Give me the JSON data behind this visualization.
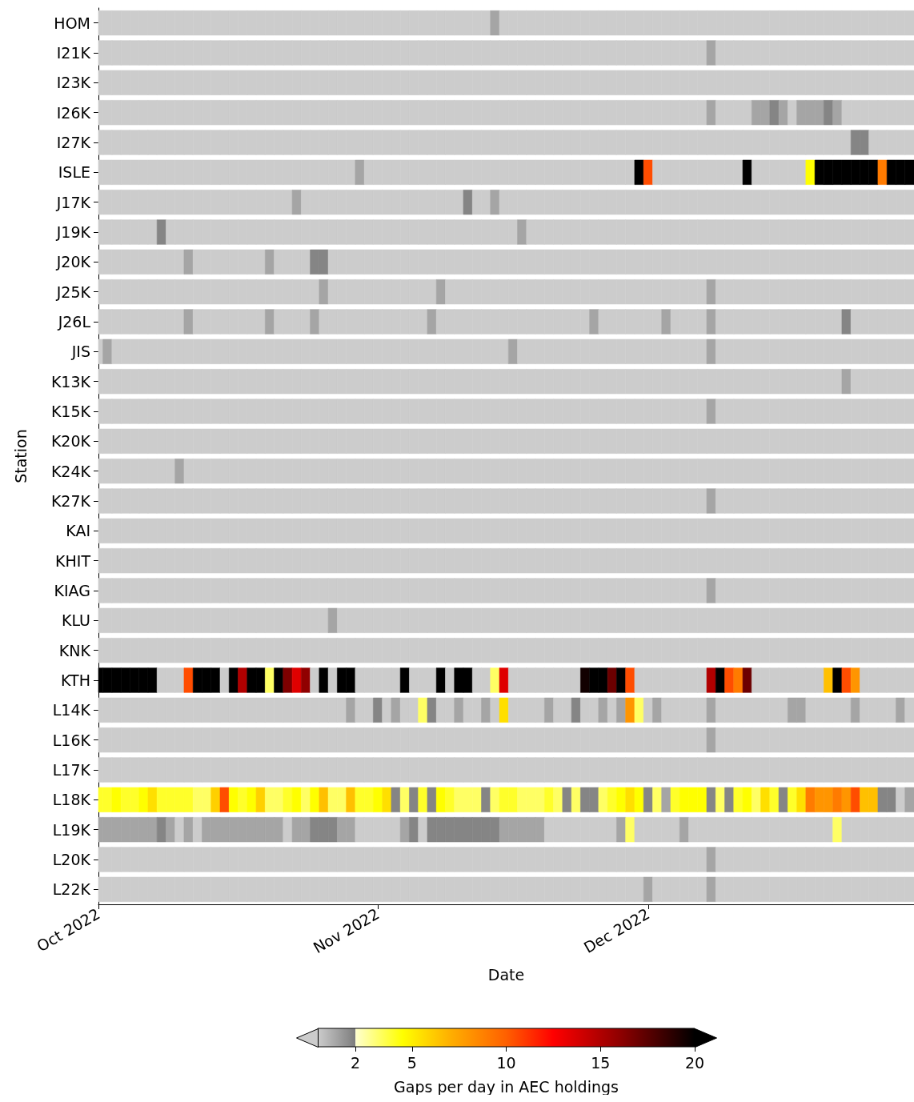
{
  "chart_data": {
    "type": "heatmap",
    "xlabel": "Date",
    "ylabel": "Station",
    "clabel": "Gaps per day in AEC holdings",
    "clim": [
      0,
      20
    ],
    "cticks": [
      2,
      5,
      10,
      15,
      20
    ],
    "xlim": [
      "2022-10-01",
      "2022-12-30T12:00"
    ],
    "xticks": [
      {
        "value": "2022-10-01",
        "label": "Oct 2022"
      },
      {
        "value": "2022-11-01",
        "label": "Nov 2022"
      },
      {
        "value": "2022-12-01",
        "label": "Dec 2022"
      }
    ],
    "x": [
      "2022-10-01",
      "2022-10-02",
      "2022-10-03",
      "2022-10-04",
      "2022-10-05",
      "2022-10-06",
      "2022-10-07",
      "2022-10-08",
      "2022-10-09",
      "2022-10-10",
      "2022-10-11",
      "2022-10-12",
      "2022-10-13",
      "2022-10-14",
      "2022-10-15",
      "2022-10-16",
      "2022-10-17",
      "2022-10-18",
      "2022-10-19",
      "2022-10-20",
      "2022-10-21",
      "2022-10-22",
      "2022-10-23",
      "2022-10-24",
      "2022-10-25",
      "2022-10-26",
      "2022-10-27",
      "2022-10-28",
      "2022-10-29",
      "2022-10-30",
      "2022-10-31",
      "2022-11-01",
      "2022-11-02",
      "2022-11-03",
      "2022-11-04",
      "2022-11-05",
      "2022-11-06",
      "2022-11-07",
      "2022-11-08",
      "2022-11-09",
      "2022-11-10",
      "2022-11-11",
      "2022-11-12",
      "2022-11-13",
      "2022-11-14",
      "2022-11-15",
      "2022-11-16",
      "2022-11-17",
      "2022-11-18",
      "2022-11-19",
      "2022-11-20",
      "2022-11-21",
      "2022-11-22",
      "2022-11-23",
      "2022-11-24",
      "2022-11-25",
      "2022-11-26",
      "2022-11-27",
      "2022-11-28",
      "2022-11-29",
      "2022-11-30",
      "2022-12-01",
      "2022-12-02",
      "2022-12-03",
      "2022-12-04",
      "2022-12-05",
      "2022-12-06",
      "2022-12-07",
      "2022-12-08",
      "2022-12-09",
      "2022-12-10",
      "2022-12-11",
      "2022-12-12",
      "2022-12-13",
      "2022-12-14",
      "2022-12-15",
      "2022-12-16",
      "2022-12-17",
      "2022-12-18",
      "2022-12-19",
      "2022-12-20",
      "2022-12-21",
      "2022-12-22",
      "2022-12-23",
      "2022-12-24",
      "2022-12-25",
      "2022-12-26",
      "2022-12-27",
      "2022-12-28",
      "2022-12-29",
      "2022-12-30"
    ],
    "y_categories": [
      "HOM",
      "I21K",
      "I23K",
      "I26K",
      "I27K",
      "ISLE",
      "J17K",
      "J19K",
      "J20K",
      "J25K",
      "J26L",
      "JIS",
      "K13K",
      "K15K",
      "K20K",
      "K24K",
      "K27K",
      "KAI",
      "KHIT",
      "KIAG",
      "KLU",
      "KNK",
      "KTH",
      "L14K",
      "L16K",
      "L17K",
      "L18K",
      "L19K",
      "L20K",
      "L22K"
    ],
    "cells": [
      [
        0,
        0,
        0,
        0,
        0,
        0,
        0,
        0,
        0,
        0,
        0,
        0,
        0,
        0,
        0,
        0,
        0,
        0,
        0,
        0,
        0,
        0,
        0,
        0,
        0,
        0,
        0,
        0,
        0,
        0,
        0,
        0,
        0,
        0,
        0,
        0,
        0,
        0,
        0,
        0,
        0,
        0,
        0,
        0,
        1,
        0,
        0,
        0,
        0,
        0,
        0,
        0,
        0,
        0,
        0,
        0,
        0,
        0,
        0,
        0,
        0,
        0,
        0,
        0,
        0,
        0,
        0,
        0,
        0,
        0,
        0,
        0,
        0,
        0,
        0,
        0,
        0,
        0,
        0,
        0,
        0,
        0,
        0,
        0,
        0,
        0,
        0,
        0,
        0,
        0,
        0
      ],
      [
        0,
        0,
        0,
        0,
        0,
        0,
        0,
        0,
        0,
        0,
        0,
        0,
        0,
        0,
        0,
        0,
        0,
        0,
        0,
        0,
        0,
        0,
        0,
        0,
        0,
        0,
        0,
        0,
        0,
        0,
        0,
        0,
        0,
        0,
        0,
        0,
        0,
        0,
        0,
        0,
        0,
        0,
        0,
        0,
        0,
        0,
        0,
        0,
        0,
        0,
        0,
        0,
        0,
        0,
        0,
        0,
        0,
        0,
        0,
        0,
        0,
        0,
        0,
        0,
        0,
        0,
        0,
        0,
        1,
        0,
        0,
        0,
        0,
        0,
        0,
        0,
        0,
        0,
        0,
        0,
        0,
        0,
        0,
        0,
        0,
        0,
        0,
        0,
        0,
        0,
        0
      ],
      [
        0,
        0,
        0,
        0,
        0,
        0,
        0,
        0,
        0,
        0,
        0,
        0,
        0,
        0,
        0,
        0,
        0,
        0,
        0,
        0,
        0,
        0,
        0,
        0,
        0,
        0,
        0,
        0,
        0,
        0,
        0,
        0,
        0,
        0,
        0,
        0,
        0,
        0,
        0,
        0,
        0,
        0,
        0,
        0,
        0,
        0,
        0,
        0,
        0,
        0,
        0,
        0,
        0,
        0,
        0,
        0,
        0,
        0,
        0,
        0,
        0,
        0,
        0,
        0,
        0,
        0,
        0,
        0,
        0,
        0,
        0,
        0,
        0,
        0,
        0,
        0,
        0,
        0,
        0,
        0,
        0,
        0,
        0,
        0,
        0,
        0,
        0,
        0,
        0,
        0,
        0
      ],
      [
        0,
        0,
        0,
        0,
        0,
        0,
        0,
        0,
        0,
        0,
        0,
        0,
        0,
        0,
        0,
        0,
        0,
        0,
        0,
        0,
        0,
        0,
        0,
        0,
        0,
        0,
        0,
        0,
        0,
        0,
        0,
        0,
        0,
        0,
        0,
        0,
        0,
        0,
        0,
        0,
        0,
        0,
        0,
        0,
        0,
        0,
        0,
        0,
        0,
        0,
        0,
        0,
        0,
        0,
        0,
        0,
        0,
        0,
        0,
        0,
        0,
        0,
        0,
        0,
        0,
        0,
        0,
        0,
        1,
        0,
        0,
        0,
        0,
        1,
        1,
        1.8,
        1,
        0,
        1,
        1,
        1,
        1.8,
        1,
        0,
        0,
        0,
        0,
        0,
        0,
        0,
        0
      ],
      [
        0,
        0,
        0,
        0,
        0,
        0,
        0,
        0,
        0,
        0,
        0,
        0,
        0,
        0,
        0,
        0,
        0,
        0,
        0,
        0,
        0,
        0,
        0,
        0,
        0,
        0,
        0,
        0,
        0,
        0,
        0,
        0,
        0,
        0,
        0,
        0,
        0,
        0,
        0,
        0,
        0,
        0,
        0,
        0,
        0,
        0,
        0,
        0,
        0,
        0,
        0,
        0,
        0,
        0,
        0,
        0,
        0,
        0,
        0,
        0,
        0,
        0,
        0,
        0,
        0,
        0,
        0,
        0,
        0,
        0,
        0,
        0,
        0,
        0,
        0,
        0,
        0,
        0,
        0,
        0,
        0,
        0,
        0,
        0,
        1.8,
        1.8,
        0,
        0,
        0,
        0,
        0
      ],
      [
        0,
        0,
        0,
        0,
        0,
        0,
        0,
        0,
        0,
        0,
        0,
        0,
        0,
        0,
        0,
        0,
        0,
        0,
        0,
        0,
        0,
        0,
        0,
        0,
        0,
        0,
        0,
        0,
        0,
        1,
        0,
        0,
        0,
        0,
        0,
        0,
        0,
        0,
        0,
        0,
        0,
        0,
        0,
        0,
        0,
        0,
        0,
        0,
        0,
        0,
        0,
        0,
        0,
        0,
        0,
        0,
        0,
        0,
        0,
        0,
        20,
        10.5,
        0,
        0,
        0,
        0,
        0,
        0,
        0,
        0,
        0,
        0,
        20,
        0,
        0,
        0,
        0,
        0,
        0,
        4.5,
        20,
        20,
        20,
        20,
        20,
        20,
        20,
        9,
        20,
        20,
        20
      ],
      [
        0,
        0,
        0,
        0,
        0,
        0,
        0,
        0,
        0,
        0,
        0,
        0,
        0,
        0,
        0,
        0,
        0,
        0,
        0,
        0,
        0,
        0,
        1,
        0,
        0,
        0,
        0,
        0,
        0,
        0,
        0,
        0,
        0,
        0,
        0,
        0,
        0,
        0,
        0,
        0,
        0,
        1.8,
        0,
        0,
        1,
        0,
        0,
        0,
        0,
        0,
        0,
        0,
        0,
        0,
        0,
        0,
        0,
        0,
        0,
        0,
        0,
        0,
        0,
        0,
        0,
        0,
        0,
        0,
        0,
        0,
        0,
        0,
        0,
        0,
        0,
        0,
        0,
        0,
        0,
        0,
        0,
        0,
        0,
        0,
        0,
        0,
        0,
        0,
        0,
        0,
        0
      ],
      [
        0,
        0,
        0,
        0,
        0,
        0,
        0,
        1.8,
        0,
        0,
        0,
        0,
        0,
        0,
        0,
        0,
        0,
        0,
        0,
        0,
        0,
        0,
        0,
        0,
        0,
        0,
        0,
        0,
        0,
        0,
        0,
        0,
        0,
        0,
        0,
        0,
        0,
        0,
        0,
        0,
        0,
        0,
        0,
        0,
        0,
        0,
        0,
        1,
        0,
        0,
        0,
        0,
        0,
        0,
        0,
        0,
        0,
        0,
        0,
        0,
        0,
        0,
        0,
        0,
        0,
        0,
        0,
        0,
        0,
        0,
        0,
        0,
        0,
        0,
        0,
        0,
        0,
        0,
        0,
        0,
        0,
        0,
        0,
        0,
        0,
        0,
        0,
        0,
        0,
        0,
        0
      ],
      [
        0,
        0,
        0,
        0,
        0,
        0,
        0,
        0,
        0,
        0,
        1,
        0,
        0,
        0,
        0,
        0,
        0,
        0,
        0,
        1,
        0,
        0,
        0,
        0,
        1.8,
        1.8,
        0,
        0,
        0,
        0,
        0,
        0,
        0,
        0,
        0,
        0,
        0,
        0,
        0,
        0,
        0,
        0,
        0,
        0,
        0,
        0,
        0,
        0,
        0,
        0,
        0,
        0,
        0,
        0,
        0,
        0,
        0,
        0,
        0,
        0,
        0,
        0,
        0,
        0,
        0,
        0,
        0,
        0,
        0,
        0,
        0,
        0,
        0,
        0,
        0,
        0,
        0,
        0,
        0,
        0,
        0,
        0,
        0,
        0,
        0,
        0,
        0,
        0,
        0,
        0,
        0
      ],
      [
        0,
        0,
        0,
        0,
        0,
        0,
        0,
        0,
        0,
        0,
        0,
        0,
        0,
        0,
        0,
        0,
        0,
        0,
        0,
        0,
        0,
        0,
        0,
        0,
        0,
        1,
        0,
        0,
        0,
        0,
        0,
        0,
        0,
        0,
        0,
        0,
        0,
        0,
        1,
        0,
        0,
        0,
        0,
        0,
        0,
        0,
        0,
        0,
        0,
        0,
        0,
        0,
        0,
        0,
        0,
        0,
        0,
        0,
        0,
        0,
        0,
        0,
        0,
        0,
        0,
        0,
        0,
        0,
        1,
        0,
        0,
        0,
        0,
        0,
        0,
        0,
        0,
        0,
        0,
        0,
        0,
        0,
        0,
        0,
        0,
        0,
        0,
        0,
        0,
        0,
        0
      ],
      [
        0,
        0,
        0,
        0,
        0,
        0,
        0,
        0,
        0,
        0,
        1,
        0,
        0,
        0,
        0,
        0,
        0,
        0,
        0,
        1,
        0,
        0,
        0,
        0,
        1,
        0,
        0,
        0,
        0,
        0,
        0,
        0,
        0,
        0,
        0,
        0,
        0,
        1,
        0,
        0,
        0,
        0,
        0,
        0,
        0,
        0,
        0,
        0,
        0,
        0,
        0,
        0,
        0,
        0,
        0,
        1,
        0,
        0,
        0,
        0,
        0,
        0,
        0,
        1,
        0,
        0,
        0,
        0,
        1,
        0,
        0,
        0,
        0,
        0,
        0,
        0,
        0,
        0,
        0,
        0,
        0,
        0,
        0,
        1.8,
        0,
        0,
        0,
        0,
        0,
        0,
        0
      ],
      [
        0,
        1,
        0,
        0,
        0,
        0,
        0,
        0,
        0,
        0,
        0,
        0,
        0,
        0,
        0,
        0,
        0,
        0,
        0,
        0,
        0,
        0,
        0,
        0,
        0,
        0,
        0,
        0,
        0,
        0,
        0,
        0,
        0,
        0,
        0,
        0,
        0,
        0,
        0,
        0,
        0,
        0,
        0,
        0,
        0,
        0,
        1,
        0,
        0,
        0,
        0,
        0,
        0,
        0,
        0,
        0,
        0,
        0,
        0,
        0,
        0,
        0,
        0,
        0,
        0,
        0,
        0,
        0,
        1,
        0,
        0,
        0,
        0,
        0,
        0,
        0,
        0,
        0,
        0,
        0,
        0,
        0,
        0,
        0,
        0,
        0,
        0,
        0,
        0,
        0,
        0
      ],
      [
        0,
        0,
        0,
        0,
        0,
        0,
        0,
        0,
        0,
        0,
        0,
        0,
        0,
        0,
        0,
        0,
        0,
        0,
        0,
        0,
        0,
        0,
        0,
        0,
        0,
        0,
        0,
        0,
        0,
        0,
        0,
        0,
        0,
        0,
        0,
        0,
        0,
        0,
        0,
        0,
        0,
        0,
        0,
        0,
        0,
        0,
        0,
        0,
        0,
        0,
        0,
        0,
        0,
        0,
        0,
        0,
        0,
        0,
        0,
        0,
        0,
        0,
        0,
        0,
        0,
        0,
        0,
        0,
        0,
        0,
        0,
        0,
        0,
        0,
        0,
        0,
        0,
        0,
        0,
        0,
        0,
        0,
        0,
        1,
        0,
        0,
        0,
        0,
        0,
        0,
        0
      ],
      [
        0,
        0,
        0,
        0,
        0,
        0,
        0,
        0,
        0,
        0,
        0,
        0,
        0,
        0,
        0,
        0,
        0,
        0,
        0,
        0,
        0,
        0,
        0,
        0,
        0,
        0,
        0,
        0,
        0,
        0,
        0,
        0,
        0,
        0,
        0,
        0,
        0,
        0,
        0,
        0,
        0,
        0,
        0,
        0,
        0,
        0,
        0,
        0,
        0,
        0,
        0,
        0,
        0,
        0,
        0,
        0,
        0,
        0,
        0,
        0,
        0,
        0,
        0,
        0,
        0,
        0,
        0,
        0,
        1,
        0,
        0,
        0,
        0,
        0,
        0,
        0,
        0,
        0,
        0,
        0,
        0,
        0,
        0,
        0,
        0,
        0,
        0,
        0,
        0,
        0,
        0
      ],
      [
        0,
        0,
        0,
        0,
        0,
        0,
        0,
        0,
        0,
        0,
        0,
        0,
        0,
        0,
        0,
        0,
        0,
        0,
        0,
        0,
        0,
        0,
        0,
        0,
        0,
        0,
        0,
        0,
        0,
        0,
        0,
        0,
        0,
        0,
        0,
        0,
        0,
        0,
        0,
        0,
        0,
        0,
        0,
        0,
        0,
        0,
        0,
        0,
        0,
        0,
        0,
        0,
        0,
        0,
        0,
        0,
        0,
        0,
        0,
        0,
        0,
        0,
        0,
        0,
        0,
        0,
        0,
        0,
        0,
        0,
        0,
        0,
        0,
        0,
        0,
        0,
        0,
        0,
        0,
        0,
        0,
        0,
        0,
        0,
        0,
        0,
        0,
        0,
        0,
        0,
        0
      ],
      [
        0,
        0,
        0,
        0,
        0,
        0,
        0,
        0,
        0,
        1,
        0,
        0,
        0,
        0,
        0,
        0,
        0,
        0,
        0,
        0,
        0,
        0,
        0,
        0,
        0,
        0,
        0,
        0,
        0,
        0,
        0,
        0,
        0,
        0,
        0,
        0,
        0,
        0,
        0,
        0,
        0,
        0,
        0,
        0,
        0,
        0,
        0,
        0,
        0,
        0,
        0,
        0,
        0,
        0,
        0,
        0,
        0,
        0,
        0,
        0,
        0,
        0,
        0,
        0,
        0,
        0,
        0,
        0,
        0,
        0,
        0,
        0,
        0,
        0,
        0,
        0,
        0,
        0,
        0,
        0,
        0,
        0,
        0,
        0,
        0,
        0,
        0,
        0,
        0,
        0,
        0
      ],
      [
        0,
        0,
        0,
        0,
        0,
        0,
        0,
        0,
        0,
        0,
        0,
        0,
        0,
        0,
        0,
        0,
        0,
        0,
        0,
        0,
        0,
        0,
        0,
        0,
        0,
        0,
        0,
        0,
        0,
        0,
        0,
        0,
        0,
        0,
        0,
        0,
        0,
        0,
        0,
        0,
        0,
        0,
        0,
        0,
        0,
        0,
        0,
        0,
        0,
        0,
        0,
        0,
        0,
        0,
        0,
        0,
        0,
        0,
        0,
        0,
        0,
        0,
        0,
        0,
        0,
        0,
        0,
        0,
        1,
        0,
        0,
        0,
        0,
        0,
        0,
        0,
        0,
        0,
        0,
        0,
        0,
        0,
        0,
        0,
        0,
        0,
        0,
        0,
        0,
        0,
        0
      ],
      [
        0,
        0,
        0,
        0,
        0,
        0,
        0,
        0,
        0,
        0,
        0,
        0,
        0,
        0,
        0,
        0,
        0,
        0,
        0,
        0,
        0,
        0,
        0,
        0,
        0,
        0,
        0,
        0,
        0,
        0,
        0,
        0,
        0,
        0,
        0,
        0,
        0,
        0,
        0,
        0,
        0,
        0,
        0,
        0,
        0,
        0,
        0,
        0,
        0,
        0,
        0,
        0,
        0,
        0,
        0,
        0,
        0,
        0,
        0,
        0,
        0,
        0,
        0,
        0,
        0,
        0,
        0,
        0,
        0,
        0,
        0,
        0,
        0,
        0,
        0,
        0,
        0,
        0,
        0,
        0,
        0,
        0,
        0,
        0,
        0,
        0,
        0,
        0,
        0,
        0,
        0
      ],
      [
        0,
        0,
        0,
        0,
        0,
        0,
        0,
        0,
        0,
        0,
        0,
        0,
        0,
        0,
        0,
        0,
        0,
        0,
        0,
        0,
        0,
        0,
        0,
        0,
        0,
        0,
        0,
        0,
        0,
        0,
        0,
        0,
        0,
        0,
        0,
        0,
        0,
        0,
        0,
        0,
        0,
        0,
        0,
        0,
        0,
        0,
        0,
        0,
        0,
        0,
        0,
        0,
        0,
        0,
        0,
        0,
        0,
        0,
        0,
        0,
        0,
        0,
        0,
        0,
        0,
        0,
        0,
        0,
        0,
        0,
        0,
        0,
        0,
        0,
        0,
        0,
        0,
        0,
        0,
        0,
        0,
        0,
        0,
        0,
        0,
        0,
        0,
        0,
        0,
        0,
        0
      ],
      [
        0,
        0,
        0,
        0,
        0,
        0,
        0,
        0,
        0,
        0,
        0,
        0,
        0,
        0,
        0,
        0,
        0,
        0,
        0,
        0,
        0,
        0,
        0,
        0,
        0,
        0,
        0,
        0,
        0,
        0,
        0,
        0,
        0,
        0,
        0,
        0,
        0,
        0,
        0,
        0,
        0,
        0,
        0,
        0,
        0,
        0,
        0,
        0,
        0,
        0,
        0,
        0,
        0,
        0,
        0,
        0,
        0,
        0,
        0,
        0,
        0,
        0,
        0,
        0,
        0,
        0,
        0,
        0,
        1,
        0,
        0,
        0,
        0,
        0,
        0,
        0,
        0,
        0,
        0,
        0,
        0,
        0,
        0,
        0,
        0,
        0,
        0,
        0,
        0,
        0,
        0
      ],
      [
        0,
        0,
        0,
        0,
        0,
        0,
        0,
        0,
        0,
        0,
        0,
        0,
        0,
        0,
        0,
        0,
        0,
        0,
        0,
        0,
        0,
        0,
        0,
        0,
        0,
        0,
        1,
        0,
        0,
        0,
        0,
        0,
        0,
        0,
        0,
        0,
        0,
        0,
        0,
        0,
        0,
        0,
        0,
        0,
        0,
        0,
        0,
        0,
        0,
        0,
        0,
        0,
        0,
        0,
        0,
        0,
        0,
        0,
        0,
        0,
        0,
        0,
        0,
        0,
        0,
        0,
        0,
        0,
        0,
        0,
        0,
        0,
        0,
        0,
        0,
        0,
        0,
        0,
        0,
        0,
        0,
        0,
        0,
        0,
        0,
        0,
        0,
        0,
        0,
        0,
        0
      ],
      [
        0,
        0,
        0,
        0,
        0,
        0,
        0,
        0,
        0,
        0,
        0,
        0,
        0,
        0,
        0,
        0,
        0,
        0,
        0,
        0,
        0,
        0,
        0,
        0,
        0,
        0,
        0,
        0,
        0,
        0,
        0,
        0,
        0,
        0,
        0,
        0,
        0,
        0,
        0,
        0,
        0,
        0,
        0,
        0,
        0,
        0,
        0,
        0,
        0,
        0,
        0,
        0,
        0,
        0,
        0,
        0,
        0,
        0,
        0,
        0,
        0,
        0,
        0,
        0,
        0,
        0,
        0,
        0,
        0,
        0,
        0,
        0,
        0,
        0,
        0,
        0,
        0,
        0,
        0,
        0,
        0,
        0,
        0,
        0,
        0,
        0,
        0,
        0,
        0,
        0,
        0
      ],
      [
        20,
        20,
        20,
        20,
        20,
        20,
        20,
        0,
        0,
        0,
        10.5,
        20,
        20,
        20,
        0,
        20,
        15,
        20,
        20,
        3.3,
        20,
        16.5,
        13.5,
        16,
        0,
        20,
        0,
        20,
        20,
        0,
        0,
        0,
        0,
        0,
        20,
        0,
        0,
        0,
        20,
        0,
        20,
        20,
        0,
        0,
        3.3,
        13.5,
        0,
        0,
        0,
        0,
        0,
        0,
        0,
        0,
        19.5,
        20,
        20,
        17,
        20,
        10.5,
        0,
        0,
        0,
        0,
        0,
        0,
        0,
        0,
        15,
        20,
        10.5,
        9,
        17,
        0,
        0,
        0,
        0,
        0,
        0,
        0,
        0,
        6.5,
        20,
        10.5,
        8,
        0,
        0,
        0,
        0,
        0,
        0
      ],
      [
        0,
        0,
        0,
        0,
        0,
        0,
        0,
        0,
        0,
        0,
        0,
        0,
        0,
        0,
        0,
        0,
        0,
        0,
        0,
        0,
        0,
        0,
        0,
        0,
        0,
        0,
        0,
        0,
        1,
        0,
        0,
        1.8,
        0,
        1,
        0,
        0,
        3.3,
        1.8,
        0,
        0,
        1,
        0,
        0,
        1,
        0,
        5.5,
        0,
        0,
        0,
        0,
        1,
        0,
        0,
        1.8,
        0,
        0,
        1,
        0,
        1,
        8,
        3.3,
        0,
        1,
        0,
        0,
        0,
        0,
        0,
        1,
        0,
        0,
        0,
        0,
        0,
        0,
        0,
        0,
        1,
        1,
        0,
        0,
        0,
        0,
        0,
        1,
        0,
        0,
        0,
        0,
        1,
        0
      ],
      [
        0,
        0,
        0,
        0,
        0,
        0,
        0,
        0,
        0,
        0,
        0,
        0,
        0,
        0,
        0,
        0,
        0,
        0,
        0,
        0,
        0,
        0,
        0,
        0,
        0,
        0,
        0,
        0,
        0,
        0,
        0,
        0,
        0,
        0,
        0,
        0,
        0,
        0,
        0,
        0,
        0,
        0,
        0,
        0,
        0,
        0,
        0,
        0,
        0,
        0,
        0,
        0,
        0,
        0,
        0,
        0,
        0,
        0,
        0,
        0,
        0,
        0,
        0,
        0,
        0,
        0,
        0,
        0,
        1,
        0,
        0,
        0,
        0,
        0,
        0,
        0,
        0,
        0,
        0,
        0,
        0,
        0,
        0,
        0,
        0,
        0,
        0,
        0,
        0,
        0,
        0
      ],
      [
        0,
        0,
        0,
        0,
        0,
        0,
        0,
        0,
        0,
        0,
        0,
        0,
        0,
        0,
        0,
        0,
        0,
        0,
        0,
        0,
        0,
        0,
        0,
        0,
        0,
        0,
        0,
        0,
        0,
        0,
        0,
        0,
        0,
        0,
        0,
        0,
        0,
        0,
        0,
        0,
        0,
        0,
        0,
        0,
        0,
        0,
        0,
        0,
        0,
        0,
        0,
        0,
        0,
        0,
        0,
        0,
        0,
        0,
        0,
        0,
        0,
        0,
        0,
        0,
        0,
        0,
        0,
        0,
        0,
        0,
        0,
        0,
        0,
        0,
        0,
        0,
        0,
        0,
        0,
        0,
        0,
        0,
        0,
        0,
        0,
        0,
        0,
        0,
        0,
        0,
        0
      ],
      [
        4,
        4,
        4.5,
        4,
        4,
        4.5,
        5.5,
        4,
        4,
        4,
        4,
        3.3,
        3.3,
        6,
        10.5,
        4.5,
        4,
        4.5,
        6,
        3.3,
        3.3,
        4,
        4.5,
        3.3,
        4.5,
        6.5,
        3.3,
        3.3,
        6.5,
        4,
        4,
        4.5,
        5.5,
        1.8,
        3.3,
        1.8,
        4,
        1.8,
        4.5,
        4,
        3.3,
        3.3,
        3.3,
        1.8,
        3.3,
        4,
        4,
        3.3,
        3.3,
        3.3,
        4,
        3.3,
        1.8,
        3.3,
        1.8,
        1.8,
        3.3,
        4,
        4.5,
        5.5,
        4.5,
        1.8,
        3.3,
        1,
        4,
        4.5,
        4.5,
        4.5,
        1.8,
        3.3,
        1.8,
        4,
        4.5,
        3.3,
        5.5,
        4,
        1.8,
        4,
        5.5,
        9,
        8,
        8,
        9,
        8,
        10.5,
        6.5,
        6.5,
        1.8,
        1.8,
        0,
        1
      ],
      [
        1,
        1,
        1,
        1,
        1,
        1,
        1,
        1.8,
        1,
        0,
        1,
        0,
        1,
        1,
        1,
        1,
        1,
        1,
        1,
        1,
        1,
        0,
        1,
        1,
        1.8,
        1.8,
        1.8,
        1,
        1,
        0,
        0,
        0,
        0,
        0,
        1,
        1.8,
        0,
        1.8,
        1.8,
        1.8,
        1.8,
        1.8,
        1.8,
        1.8,
        1.8,
        1,
        1,
        1,
        1,
        1,
        0,
        0,
        0,
        0,
        0,
        0,
        0,
        0,
        1,
        3.3,
        0,
        0,
        0,
        0,
        0,
        1,
        0,
        0,
        0,
        0,
        0,
        0,
        0,
        0,
        0,
        0,
        0,
        0,
        0,
        0,
        0,
        0,
        3.3,
        0,
        0,
        0,
        0,
        0,
        0,
        0,
        0
      ],
      [
        0,
        0,
        0,
        0,
        0,
        0,
        0,
        0,
        0,
        0,
        0,
        0,
        0,
        0,
        0,
        0,
        0,
        0,
        0,
        0,
        0,
        0,
        0,
        0,
        0,
        0,
        0,
        0,
        0,
        0,
        0,
        0,
        0,
        0,
        0,
        0,
        0,
        0,
        0,
        0,
        0,
        0,
        0,
        0,
        0,
        0,
        0,
        0,
        0,
        0,
        0,
        0,
        0,
        0,
        0,
        0,
        0,
        0,
        0,
        0,
        0,
        0,
        0,
        0,
        0,
        0,
        0,
        0,
        1,
        0,
        0,
        0,
        0,
        0,
        0,
        0,
        0,
        0,
        0,
        0,
        0,
        0,
        0,
        0,
        0,
        0,
        0,
        0,
        0,
        0,
        0
      ],
      [
        0,
        0,
        0,
        0,
        0,
        0,
        0,
        0,
        0,
        0,
        0,
        0,
        0,
        0,
        0,
        0,
        0,
        0,
        0,
        0,
        0,
        0,
        0,
        0,
        0,
        0,
        0,
        0,
        0,
        0,
        0,
        0,
        0,
        0,
        0,
        0,
        0,
        0,
        0,
        0,
        0,
        0,
        0,
        0,
        0,
        0,
        0,
        0,
        0,
        0,
        0,
        0,
        0,
        0,
        0,
        0,
        0,
        0,
        0,
        0,
        0,
        1,
        0,
        0,
        0,
        0,
        0,
        0,
        1,
        0,
        0,
        0,
        0,
        0,
        0,
        0,
        0,
        0,
        0,
        0,
        0,
        0,
        0,
        0,
        0,
        0,
        0,
        0,
        0,
        0,
        0
      ]
    ]
  }
}
